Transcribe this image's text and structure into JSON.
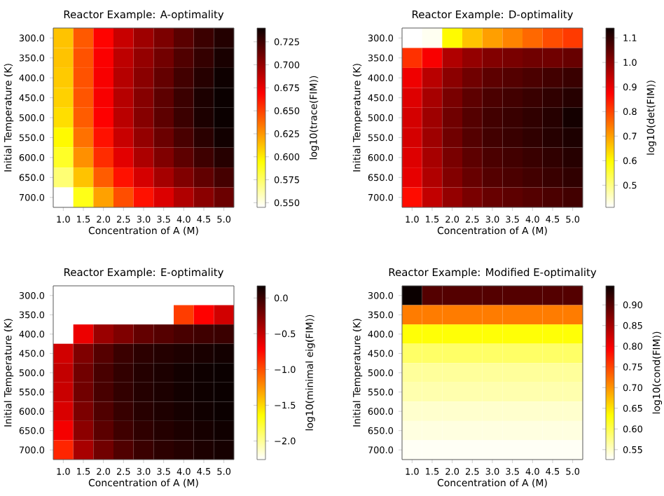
{
  "chart_data": [
    {
      "type": "heatmap",
      "title": "Reactor Example: A-optimality",
      "xlabel": "Concentration of A (M)",
      "ylabel": "Initial Temperature (K)",
      "clabel": "log10(trace(FIM))",
      "categories": [
        "1.0",
        "1.5",
        "2.0",
        "2.5",
        "3.0",
        "3.5",
        "4.0",
        "4.5",
        "5.0"
      ],
      "y_categories": [
        "300.0",
        "350.0",
        "400.0",
        "450.0",
        "500.0",
        "550.0",
        "600.0",
        "650.0",
        "700.0"
      ],
      "cells": [
        [
          0.612,
          0.643,
          0.668,
          0.685,
          0.697,
          0.707,
          0.717,
          0.726,
          0.733
        ],
        [
          0.612,
          0.645,
          0.67,
          0.688,
          0.7,
          0.71,
          0.72,
          0.728,
          0.736
        ],
        [
          0.61,
          0.645,
          0.671,
          0.69,
          0.703,
          0.714,
          0.724,
          0.732,
          0.739
        ],
        [
          0.608,
          0.644,
          0.671,
          0.69,
          0.704,
          0.716,
          0.726,
          0.735,
          0.74
        ],
        [
          0.604,
          0.642,
          0.669,
          0.689,
          0.704,
          0.716,
          0.726,
          0.735,
          0.74
        ],
        [
          0.596,
          0.636,
          0.664,
          0.685,
          0.7,
          0.712,
          0.722,
          0.731,
          0.738
        ],
        [
          0.587,
          0.627,
          0.656,
          0.677,
          0.693,
          0.706,
          0.716,
          0.725,
          0.732
        ],
        [
          0.572,
          0.612,
          0.642,
          0.664,
          0.681,
          0.695,
          0.706,
          0.715,
          0.723
        ],
        [
          0.545,
          0.59,
          0.622,
          0.646,
          0.664,
          0.679,
          0.692,
          0.703,
          0.712
        ]
      ],
      "clim": [
        0.545,
        0.74
      ],
      "cticks": [
        {
          "value": 0.55,
          "label": "0.550"
        },
        {
          "value": 0.575,
          "label": "0.575"
        },
        {
          "value": 0.6,
          "label": "0.600"
        },
        {
          "value": 0.625,
          "label": "0.625"
        },
        {
          "value": 0.65,
          "label": "0.650"
        },
        {
          "value": 0.675,
          "label": "0.675"
        },
        {
          "value": 0.7,
          "label": "0.700"
        },
        {
          "value": 0.725,
          "label": "0.725"
        }
      ]
    },
    {
      "type": "heatmap",
      "title": "Reactor Example: D-optimality",
      "xlabel": "Concentration of A (M)",
      "ylabel": "Initial Temperature (K)",
      "clabel": "log10(det(FIM))",
      "categories": [
        "1.0",
        "1.5",
        "2.0",
        "2.5",
        "3.0",
        "3.5",
        "4.0",
        "4.5",
        "5.0"
      ],
      "y_categories": [
        "300.0",
        "350.0",
        "400.0",
        "450.0",
        "500.0",
        "550.0",
        "600.0",
        "650.0",
        "700.0"
      ],
      "cells": [
        [
          0.41,
          0.42,
          0.6,
          0.66,
          0.7,
          0.73,
          0.76,
          0.79,
          0.81
        ],
        [
          0.82,
          0.88,
          0.96,
          0.99,
          1.01,
          1.02,
          1.03,
          1.03,
          1.04
        ],
        [
          0.89,
          0.95,
          1.0,
          1.03,
          1.05,
          1.06,
          1.07,
          1.08,
          1.09
        ],
        [
          0.91,
          0.97,
          1.02,
          1.05,
          1.07,
          1.08,
          1.09,
          1.1,
          1.11
        ],
        [
          0.92,
          0.98,
          1.03,
          1.06,
          1.08,
          1.09,
          1.1,
          1.11,
          1.13
        ],
        [
          0.92,
          0.98,
          1.03,
          1.06,
          1.08,
          1.09,
          1.1,
          1.11,
          1.12
        ],
        [
          0.91,
          0.97,
          1.02,
          1.05,
          1.07,
          1.08,
          1.09,
          1.1,
          1.11
        ],
        [
          0.9,
          0.96,
          1.01,
          1.04,
          1.06,
          1.07,
          1.08,
          1.09,
          1.1
        ],
        [
          0.86,
          0.94,
          0.99,
          1.02,
          1.04,
          1.05,
          1.06,
          1.07,
          1.08
        ]
      ],
      "clim": [
        0.41,
        1.14
      ],
      "cticks": [
        {
          "value": 0.5,
          "label": "0.5"
        },
        {
          "value": 0.6,
          "label": "0.6"
        },
        {
          "value": 0.7,
          "label": "0.7"
        },
        {
          "value": 0.8,
          "label": "0.8"
        },
        {
          "value": 0.9,
          "label": "0.9"
        },
        {
          "value": 1.0,
          "label": "1.0"
        },
        {
          "value": 1.1,
          "label": "1.1"
        }
      ]
    },
    {
      "type": "heatmap",
      "title": "Reactor Example: E-optimality",
      "xlabel": "Concentration of A (M)",
      "ylabel": "Initial Temperature (K)",
      "clabel": "log10(minimal eig(FIM))",
      "categories": [
        "1.0",
        "1.5",
        "2.0",
        "2.5",
        "3.0",
        "3.5",
        "4.0",
        "4.5",
        "5.0"
      ],
      "y_categories": [
        "300.0",
        "350.0",
        "400.0",
        "450.0",
        "500.0",
        "550.0",
        "600.0",
        "650.0",
        "700.0"
      ],
      "cells": [
        [
          null,
          null,
          null,
          null,
          null,
          null,
          null,
          null,
          null
        ],
        [
          null,
          null,
          null,
          null,
          null,
          null,
          -0.94,
          -0.72,
          -0.55
        ],
        [
          null,
          -0.65,
          -0.35,
          -0.25,
          -0.15,
          -0.1,
          -0.05,
          -0.02,
          0.0
        ],
        [
          -0.55,
          -0.25,
          -0.1,
          0.0,
          0.05,
          0.08,
          0.1,
          0.12,
          0.14
        ],
        [
          -0.5,
          -0.2,
          -0.05,
          0.03,
          0.08,
          0.11,
          0.14,
          0.16,
          0.17
        ],
        [
          -0.52,
          -0.2,
          -0.05,
          0.03,
          0.08,
          0.11,
          0.14,
          0.16,
          0.17
        ],
        [
          -0.58,
          -0.24,
          -0.08,
          0.01,
          0.07,
          0.1,
          0.13,
          0.15,
          0.17
        ],
        [
          -0.68,
          -0.3,
          -0.12,
          -0.02,
          0.04,
          0.08,
          0.11,
          0.13,
          0.15
        ],
        [
          -0.85,
          -0.4,
          -0.2,
          -0.08,
          0.0,
          0.05,
          0.08,
          0.11,
          0.13
        ]
      ],
      "clim": [
        -2.26,
        0.17
      ],
      "cticks": [
        {
          "value": -2.0,
          "label": "−2.0"
        },
        {
          "value": -1.5,
          "label": "−1.5"
        },
        {
          "value": -1.0,
          "label": "−1.0"
        },
        {
          "value": -0.5,
          "label": "−0.5"
        },
        {
          "value": 0.0,
          "label": "0.0"
        }
      ]
    },
    {
      "type": "heatmap",
      "title": "Reactor Example: Modified E-optimality",
      "xlabel": "Concentration of A (M)",
      "ylabel": "Initial Temperature (K)",
      "clabel": "log10(cond(FIM))",
      "categories": [
        "1.0",
        "1.5",
        "2.0",
        "2.5",
        "3.0",
        "3.5",
        "4.0",
        "4.5",
        "5.0"
      ],
      "y_categories": [
        "300.0",
        "350.0",
        "400.0",
        "450.0",
        "500.0",
        "550.0",
        "600.0",
        "650.0",
        "700.0"
      ],
      "cells": [
        [
          0.946,
          0.9,
          0.9,
          0.9,
          0.9,
          0.9,
          0.9,
          0.9,
          0.9
        ],
        [
          0.715,
          0.715,
          0.715,
          0.715,
          0.715,
          0.715,
          0.715,
          0.715,
          0.715
        ],
        [
          0.63,
          0.63,
          0.63,
          0.63,
          0.63,
          0.63,
          0.63,
          0.63,
          0.63
        ],
        [
          0.59,
          0.59,
          0.59,
          0.59,
          0.59,
          0.59,
          0.59,
          0.59,
          0.59
        ],
        [
          0.568,
          0.568,
          0.568,
          0.568,
          0.568,
          0.568,
          0.568,
          0.568,
          0.568
        ],
        [
          0.56,
          0.56,
          0.56,
          0.56,
          0.56,
          0.56,
          0.56,
          0.56,
          0.56
        ],
        [
          0.547,
          0.547,
          0.547,
          0.547,
          0.547,
          0.547,
          0.547,
          0.547,
          0.547
        ],
        [
          0.539,
          0.539,
          0.539,
          0.539,
          0.539,
          0.539,
          0.539,
          0.539,
          0.539
        ],
        [
          0.53,
          0.53,
          0.53,
          0.53,
          0.53,
          0.53,
          0.53,
          0.53,
          0.53
        ]
      ],
      "clim": [
        0.526,
        0.946
      ],
      "cticks": [
        {
          "value": 0.55,
          "label": "0.55"
        },
        {
          "value": 0.6,
          "label": "0.60"
        },
        {
          "value": 0.65,
          "label": "0.65"
        },
        {
          "value": 0.7,
          "label": "0.70"
        },
        {
          "value": 0.75,
          "label": "0.75"
        },
        {
          "value": 0.8,
          "label": "0.80"
        },
        {
          "value": 0.85,
          "label": "0.85"
        },
        {
          "value": 0.9,
          "label": "0.90"
        }
      ]
    }
  ]
}
